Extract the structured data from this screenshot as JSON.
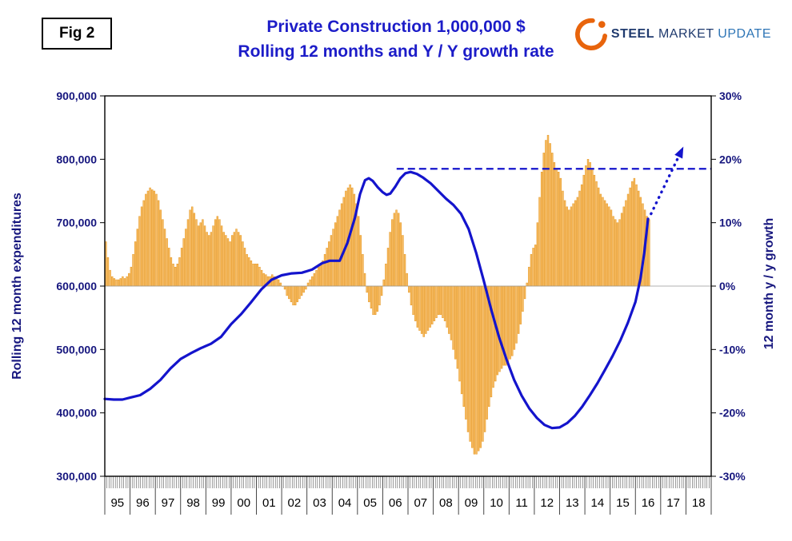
{
  "figure_label": "Fig 2",
  "title": {
    "line1": "Private Construction 1,000,000 $",
    "line2": "Rolling 12 months and Y / Y growth rate"
  },
  "logo": {
    "steel": "STEEL",
    "market": "MARKET",
    "update": "UPDATE"
  },
  "left_axis": {
    "title": "Rolling 12 month expenditures",
    "tick_labels": [
      "900,000",
      "800,000",
      "700,000",
      "600,000",
      "500,000",
      "400,000",
      "300,000"
    ]
  },
  "right_axis": {
    "title": "12 month y / y growth",
    "tick_labels": [
      "30%",
      "20%",
      "10%",
      "0%",
      "-10%",
      "-20%",
      "-30%"
    ]
  },
  "x_axis": {
    "year_labels": [
      "95",
      "96",
      "97",
      "98",
      "99",
      "00",
      "01",
      "02",
      "03",
      "04",
      "05",
      "06",
      "07",
      "08",
      "09",
      "10",
      "11",
      "12",
      "13",
      "14",
      "15",
      "16",
      "17",
      "18"
    ]
  },
  "colors": {
    "bar_fill": "#F8BB60",
    "bar_edge": "#E3951F",
    "line": "#1414CC",
    "axis_text": "#16167E",
    "title_text": "#1C1CC8",
    "logo_orange": "#E8640C"
  },
  "chart_data": {
    "type": "bar+line",
    "x_range": [
      1995,
      2019
    ],
    "left_ylim": [
      300000,
      900000
    ],
    "right_ylim": [
      -30,
      30
    ],
    "grid": false,
    "legend": false,
    "bar_series": {
      "name": "12 month y / y growth",
      "axis": "right",
      "unit": "%",
      "start_year": 1995,
      "start_month": 1,
      "monthly_values": [
        7,
        4.5,
        2.5,
        1.5,
        1.2,
        1,
        1,
        1.2,
        1.5,
        1.2,
        1.5,
        2,
        3,
        5,
        7,
        9,
        11,
        12.5,
        13.5,
        14.5,
        15,
        15.5,
        15.2,
        15,
        14.5,
        13.5,
        12,
        10.5,
        9,
        7.5,
        6,
        4.5,
        3.5,
        3,
        3.5,
        4.5,
        6,
        7.5,
        9,
        10.5,
        12,
        12.5,
        11.5,
        10.5,
        9.5,
        10,
        10.5,
        9.5,
        8.5,
        8,
        8.5,
        9.5,
        10.5,
        11,
        10.5,
        9.5,
        8.5,
        8,
        7.5,
        7,
        8,
        8.5,
        9,
        8.5,
        8,
        7,
        6,
        5,
        4.5,
        4,
        3.5,
        3.5,
        3.5,
        3,
        2.5,
        2,
        1.8,
        1.5,
        1.5,
        1.8,
        1.5,
        1.2,
        1,
        0.5,
        0,
        -0.5,
        -1.5,
        -2,
        -2.5,
        -3,
        -3,
        -2.5,
        -2,
        -1.5,
        -1,
        -0.5,
        0.5,
        1,
        1.5,
        2,
        2.5,
        3,
        3.5,
        4,
        5,
        6,
        7,
        8,
        9,
        10,
        11,
        12,
        13,
        14,
        15,
        15.5,
        16,
        15.5,
        14.5,
        13,
        11,
        8,
        5,
        2,
        -1,
        -2.5,
        -3.5,
        -4.5,
        -4.5,
        -4,
        -3,
        -1.5,
        1,
        3.5,
        6,
        8.5,
        10.5,
        11.5,
        12,
        11.5,
        10,
        8,
        5,
        2,
        -1,
        -3,
        -4.5,
        -5.5,
        -6.5,
        -7,
        -7.5,
        -8,
        -7.5,
        -7,
        -6.5,
        -6,
        -5.5,
        -5,
        -4.5,
        -4.5,
        -5,
        -5.5,
        -6.5,
        -7.5,
        -8.5,
        -10,
        -11.5,
        -13,
        -15,
        -17,
        -19,
        -21,
        -23,
        -24.5,
        -25.5,
        -26.5,
        -26.5,
        -26,
        -25.5,
        -24.5,
        -23,
        -21,
        -19,
        -17.5,
        -16,
        -15,
        -14,
        -13.5,
        -13,
        -12.5,
        -12.5,
        -12,
        -11.5,
        -11,
        -10,
        -9,
        -7.5,
        -6,
        -4,
        -2,
        0.5,
        3,
        5,
        6,
        6.5,
        10,
        14,
        18,
        21,
        23,
        23.8,
        22.5,
        21,
        19.5,
        18.5,
        18,
        17,
        15,
        13.5,
        12.5,
        12,
        12.5,
        13,
        13.5,
        14,
        15,
        16,
        17.5,
        19,
        20,
        19.5,
        18.5,
        17.5,
        16.5,
        15.5,
        14.5,
        14,
        13.5,
        13,
        12.5,
        12,
        11,
        10.5,
        10,
        10.5,
        11.5,
        12.5,
        13.5,
        14.5,
        15.5,
        16.5,
        17,
        16,
        15,
        14,
        13,
        12,
        11,
        10.5
      ]
    },
    "line_series": {
      "name": "Rolling 12 month expenditures",
      "axis": "left",
      "points": [
        [
          1995.0,
          422000
        ],
        [
          1995.35,
          421000
        ],
        [
          1995.7,
          421000
        ],
        [
          1996.0,
          424000
        ],
        [
          1996.4,
          428000
        ],
        [
          1996.8,
          438000
        ],
        [
          1997.2,
          452000
        ],
        [
          1997.6,
          470000
        ],
        [
          1998.0,
          485000
        ],
        [
          1998.4,
          494000
        ],
        [
          1998.8,
          502000
        ],
        [
          1999.2,
          509000
        ],
        [
          1999.6,
          520000
        ],
        [
          2000.0,
          540000
        ],
        [
          2000.4,
          556000
        ],
        [
          2000.8,
          575000
        ],
        [
          2001.2,
          595000
        ],
        [
          2001.6,
          610000
        ],
        [
          2002.0,
          617000
        ],
        [
          2002.4,
          620000
        ],
        [
          2002.8,
          621000
        ],
        [
          2003.2,
          626000
        ],
        [
          2003.6,
          636000
        ],
        [
          2003.9,
          640000
        ],
        [
          2004.3,
          640000
        ],
        [
          2004.6,
          668000
        ],
        [
          2004.9,
          708000
        ],
        [
          2005.1,
          745000
        ],
        [
          2005.3,
          767000
        ],
        [
          2005.45,
          770000
        ],
        [
          2005.6,
          766000
        ],
        [
          2005.8,
          756000
        ],
        [
          2006.0,
          748000
        ],
        [
          2006.15,
          744000
        ],
        [
          2006.3,
          746000
        ],
        [
          2006.5,
          757000
        ],
        [
          2006.7,
          770000
        ],
        [
          2006.9,
          778000
        ],
        [
          2007.1,
          780000
        ],
        [
          2007.35,
          777000
        ],
        [
          2007.6,
          771000
        ],
        [
          2007.9,
          762000
        ],
        [
          2008.2,
          750000
        ],
        [
          2008.5,
          738000
        ],
        [
          2008.8,
          728000
        ],
        [
          2009.1,
          714000
        ],
        [
          2009.4,
          690000
        ],
        [
          2009.7,
          652000
        ],
        [
          2010.0,
          608000
        ],
        [
          2010.3,
          562000
        ],
        [
          2010.6,
          520000
        ],
        [
          2010.9,
          484000
        ],
        [
          2011.2,
          452000
        ],
        [
          2011.5,
          427000
        ],
        [
          2011.8,
          407000
        ],
        [
          2012.1,
          392000
        ],
        [
          2012.4,
          381000
        ],
        [
          2012.7,
          376000
        ],
        [
          2013.0,
          377000
        ],
        [
          2013.3,
          384000
        ],
        [
          2013.6,
          395000
        ],
        [
          2013.9,
          410000
        ],
        [
          2014.2,
          428000
        ],
        [
          2014.5,
          447000
        ],
        [
          2014.8,
          468000
        ],
        [
          2015.1,
          490000
        ],
        [
          2015.4,
          514000
        ],
        [
          2015.7,
          542000
        ],
        [
          2016.0,
          575000
        ],
        [
          2016.2,
          612000
        ],
        [
          2016.35,
          652000
        ],
        [
          2016.5,
          706000
        ]
      ]
    },
    "reference_dashed_line": {
      "axis": "left",
      "value": 785000,
      "x_start": 2006.55,
      "x_end": 2019
    },
    "forecast_arrow": {
      "axis": "left",
      "from": [
        2016.62,
        714000
      ],
      "to": [
        2017.9,
        820000
      ],
      "style": "dotted"
    }
  }
}
